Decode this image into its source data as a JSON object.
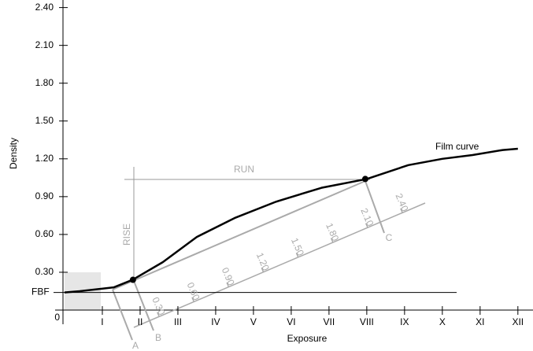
{
  "chart_data": {
    "type": "line",
    "y_label": "Density",
    "x_label": "Exposure",
    "xlim": [
      0,
      12.4
    ],
    "ylim": [
      0,
      2.46
    ],
    "xticks": [
      {
        "value": 1,
        "label": "I"
      },
      {
        "value": 2,
        "label": "II"
      },
      {
        "value": 3,
        "label": "III"
      },
      {
        "value": 4,
        "label": "IV"
      },
      {
        "value": 5,
        "label": "V"
      },
      {
        "value": 6,
        "label": "VI"
      },
      {
        "value": 7,
        "label": "VII"
      },
      {
        "value": 8,
        "label": "VIII"
      },
      {
        "value": 9,
        "label": "IX"
      },
      {
        "value": 10,
        "label": "X"
      },
      {
        "value": 11,
        "label": "XI"
      },
      {
        "value": 12,
        "label": "XII"
      }
    ],
    "yticks": [
      0,
      {
        "value": 0.3,
        "label": "0.30"
      },
      {
        "value": 0.6,
        "label": "0.60"
      },
      {
        "value": 0.9,
        "label": "0.90"
      },
      {
        "value": 1.2,
        "label": "1.20"
      },
      {
        "value": 1.5,
        "label": "1.50"
      },
      {
        "value": 1.8,
        "label": "1.80"
      },
      {
        "value": 2.1,
        "label": "2.10"
      },
      {
        "value": 2.4,
        "label": "2.40"
      }
    ],
    "series": [
      {
        "name": "Film curve",
        "color": "#000000",
        "x": [
          0,
          0.4,
          1.3,
          1.8,
          2.6,
          3.5,
          4.5,
          5.6,
          6.8,
          8.0,
          9.1,
          10.0,
          10.8,
          11.6,
          12.0
        ],
        "values": [
          0.14,
          0.15,
          0.18,
          0.24,
          0.38,
          0.58,
          0.73,
          0.86,
          0.97,
          1.04,
          1.15,
          1.2,
          1.23,
          1.27,
          1.28
        ]
      }
    ],
    "points": {
      "x": [
        1.81,
        7.96
      ],
      "values": [
        0.24,
        1.04
      ]
    },
    "fbf": {
      "label": "FBF",
      "value": 0.14
    },
    "run_label": "RUN",
    "rise_label": "RISE",
    "ruler": {
      "ticks": [
        {
          "value": 0.3,
          "label": "0.30"
        },
        {
          "value": 0.6,
          "label": "0.60"
        },
        {
          "value": 0.9,
          "label": "0.90"
        },
        {
          "value": 1.2,
          "label": "1.20"
        },
        {
          "value": 1.5,
          "label": "1.50"
        },
        {
          "value": 1.8,
          "label": "1.80"
        },
        {
          "value": 2.1,
          "label": "2.10"
        },
        {
          "value": 2.4,
          "label": "2.40"
        }
      ],
      "markers": [
        "A",
        "B",
        "C"
      ]
    }
  }
}
